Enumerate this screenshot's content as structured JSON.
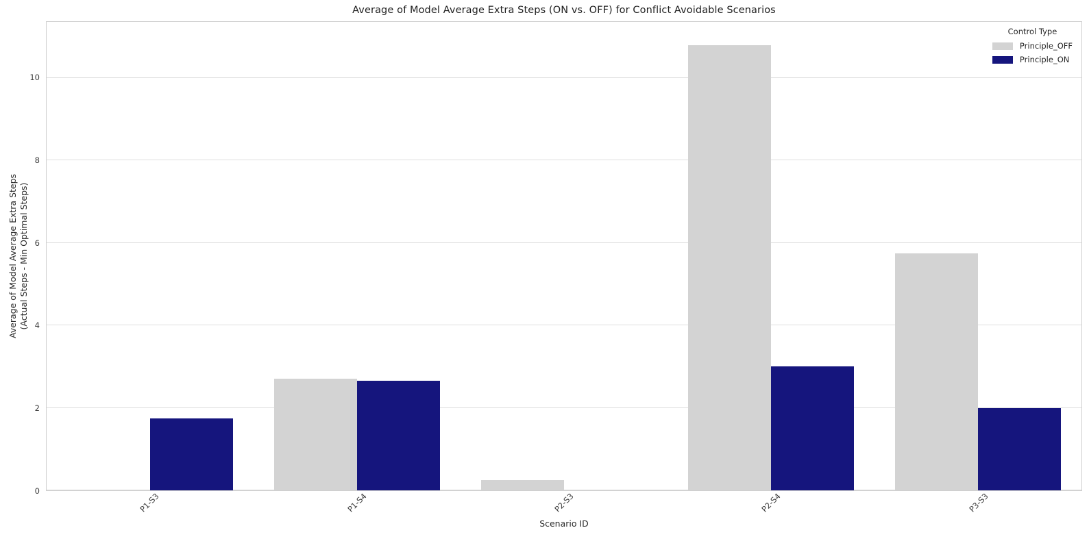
{
  "title": "Average of Model Average Extra Steps (ON vs. OFF) for Conflict Avoidable Scenarios",
  "chart_data": {
    "type": "bar",
    "title": "Average of Model Average Extra Steps (ON vs. OFF) for Conflict Avoidable Scenarios",
    "categories": [
      "P1-S3",
      "P1-S4",
      "P2-S3",
      "P2-S4",
      "P3-S3"
    ],
    "series": [
      {
        "name": "Principle_OFF",
        "color": "#d3d3d3",
        "values": [
          0,
          2.7,
          0.25,
          10.8,
          5.75
        ]
      },
      {
        "name": "Principle_ON",
        "color": "#15157d",
        "values": [
          1.75,
          2.65,
          0,
          3.0,
          2.0
        ]
      }
    ],
    "xlabel": "Scenario ID",
    "ylabel_line1": "Average of Model Average Extra Steps",
    "ylabel_line2": "(Actual Steps - Min Optimal Steps)",
    "y_ticks": [
      0,
      2,
      4,
      6,
      8,
      10
    ],
    "ylim": [
      0,
      11.36
    ],
    "grid": "horizontal",
    "legend_title": "Control Type",
    "legend_position": "upper right"
  }
}
